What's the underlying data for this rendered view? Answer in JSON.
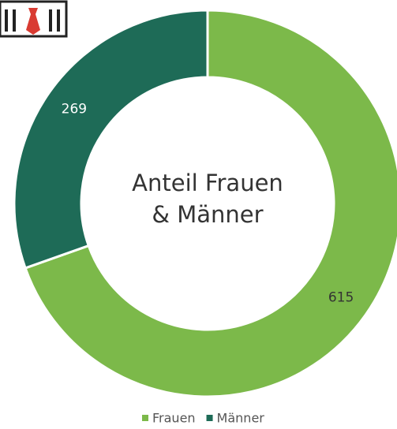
{
  "chart_data": {
    "type": "donut",
    "center_label": [
      "Anteil Frauen",
      "& Männer"
    ],
    "categories": [
      "Frauen",
      "Männer"
    ],
    "values": [
      615,
      269
    ],
    "colors": [
      "#7cb94a",
      "#1e6b57"
    ],
    "legend": "bottom"
  }
}
